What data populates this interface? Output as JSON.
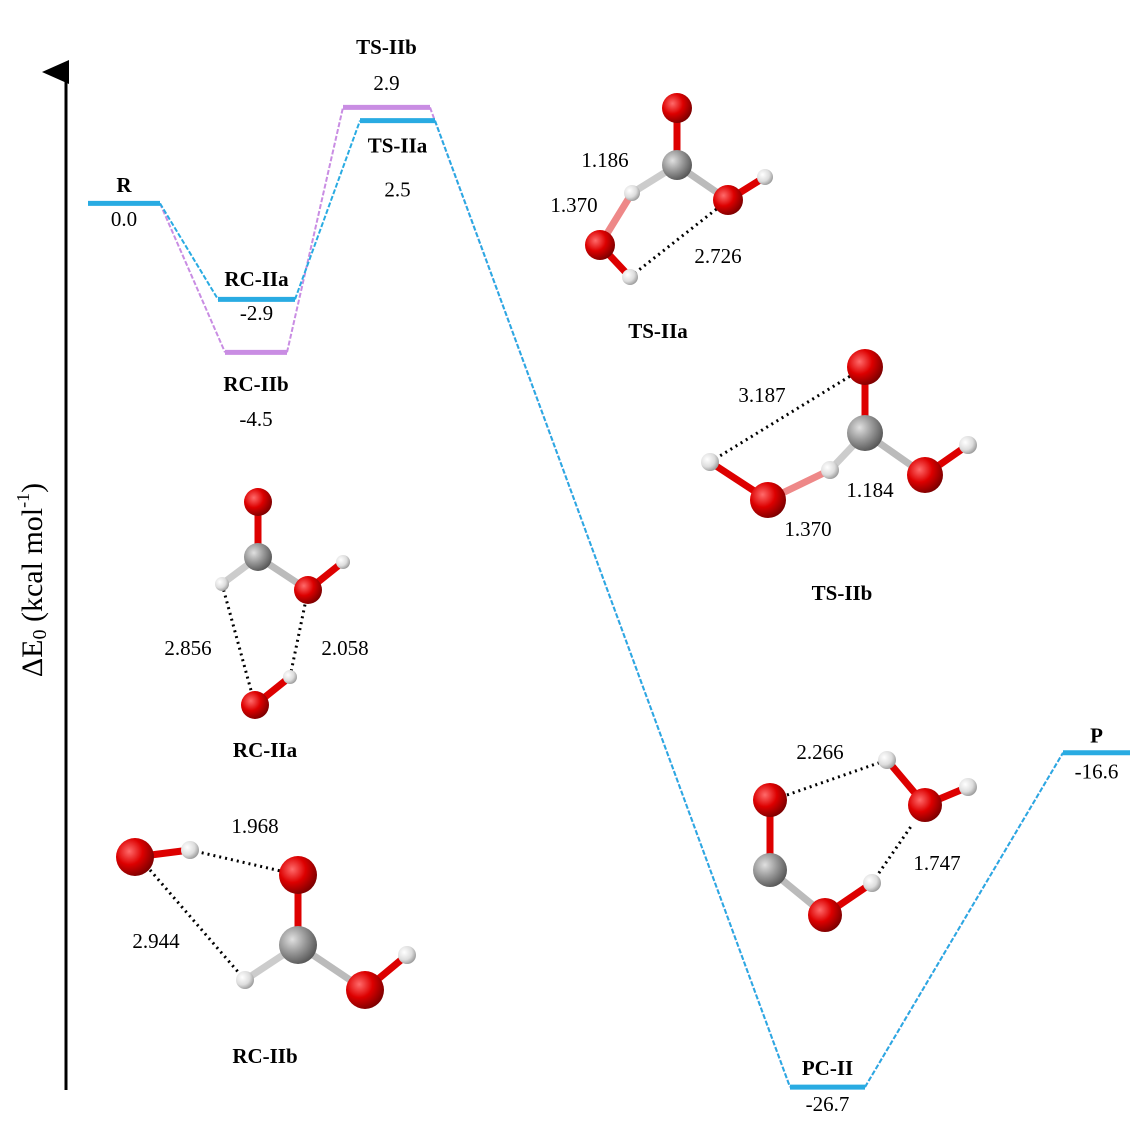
{
  "chart_data": {
    "type": "energy_profile",
    "y_label": [
      "ΔE",
      "0",
      " (kcal mol",
      "-1",
      ")"
    ],
    "categories": [
      "R",
      "RC-IIa",
      "RC-IIb",
      "TS-IIa",
      "TS-IIb",
      "PC-II",
      "P"
    ],
    "values": [
      0,
      -2.9,
      -4.5,
      2.5,
      2.9,
      -26.7,
      -16.6
    ],
    "value_labels": [
      "0.0",
      "-2.9",
      "-4.5",
      "2.5",
      "2.9",
      "-26.7",
      "-16.6"
    ],
    "ylim": [
      -27,
      4
    ],
    "series": [
      {
        "color": "#29abe2",
        "path": [
          "R",
          "RC-IIa",
          "TS-IIa",
          "PC-II",
          "P"
        ]
      },
      {
        "color": "#c98de3",
        "path": [
          "R",
          "RC-IIb",
          "TS-IIb",
          "PC-II",
          "P"
        ]
      }
    ]
  },
  "structures": [
    {
      "name": "TS-IIa",
      "distances": [
        "1.186",
        "1.370",
        "2.726"
      ]
    },
    {
      "name": "TS-IIb",
      "distances": [
        "3.187",
        "1.184",
        "1.370"
      ]
    },
    {
      "name": "RC-IIa",
      "distances": [
        "2.856",
        "2.058"
      ]
    },
    {
      "name": "RC-IIb",
      "distances": [
        "1.968",
        "2.944"
      ]
    },
    {
      "distances": [
        "2.266",
        "1.747"
      ]
    }
  ]
}
